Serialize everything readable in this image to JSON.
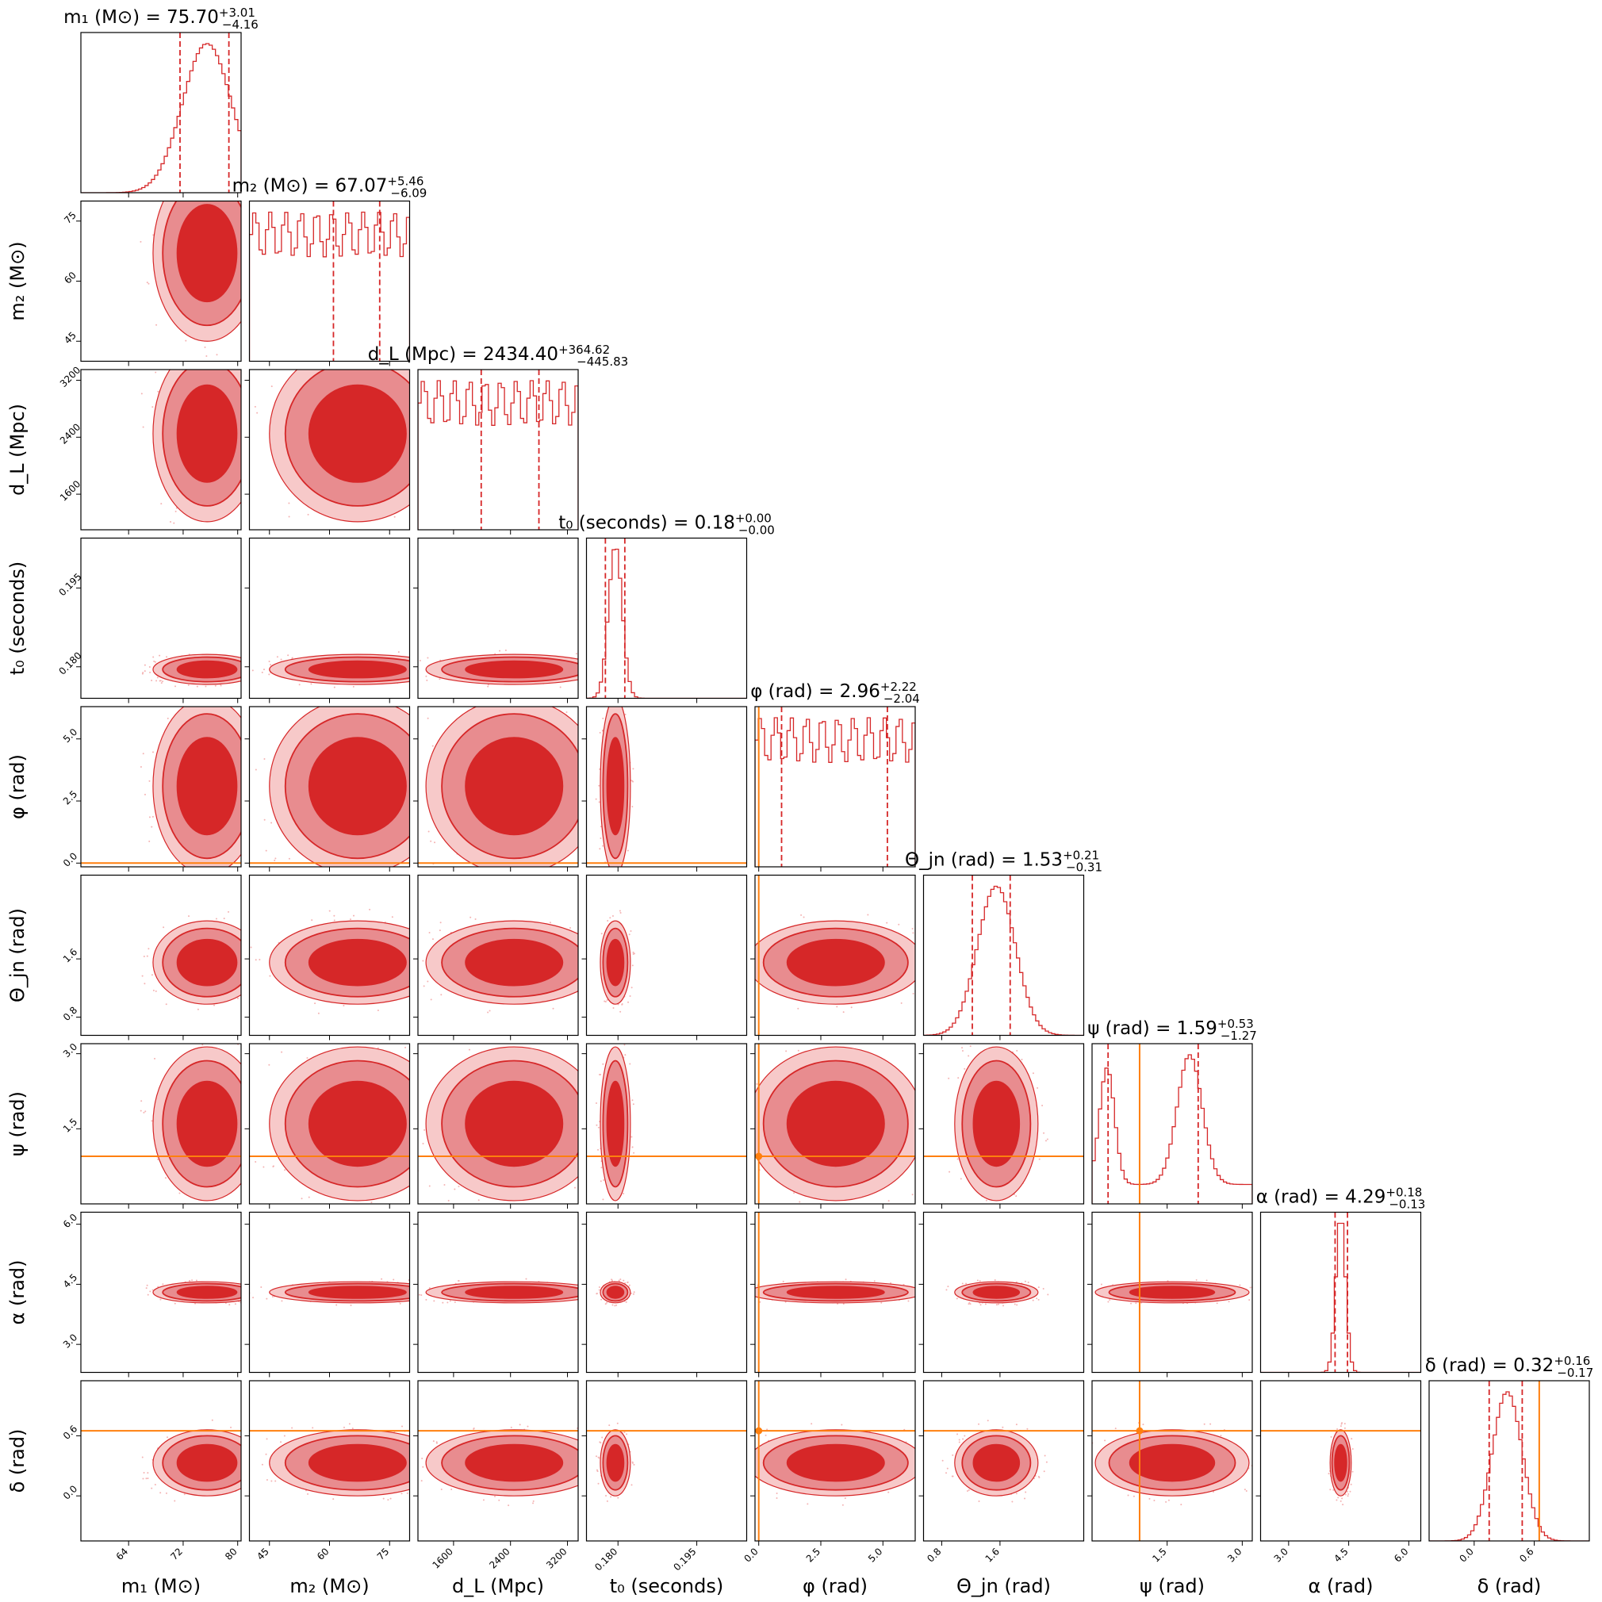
{
  "chart_data": {
    "type": "corner",
    "colors": {
      "posterior": "#d62728",
      "truth": "#ff7f0e"
    },
    "parameters": [
      {
        "id": "m1",
        "axis_label": "m₁ (M⊙)",
        "title": {
          "prefix": "m₁ (M⊙) = ",
          "median": "75.70",
          "plus": "+3.01",
          "minus": "−4.16"
        },
        "range": [
          57,
          80.5
        ],
        "ticks": [
          64,
          72,
          80
        ],
        "tick_labels": [
          "64",
          "72",
          "80"
        ],
        "median": 75.7,
        "lower": 71.54,
        "upper": 78.71,
        "center": 75.5,
        "sd": 3.6,
        "truth": null
      },
      {
        "id": "m2",
        "axis_label": "m₂ (M⊙)",
        "title": {
          "prefix": "m₂ (M⊙) = ",
          "median": "67.07",
          "plus": "+5.46",
          "minus": "−6.09"
        },
        "range": [
          40,
          80
        ],
        "ticks": [
          45,
          60,
          75
        ],
        "tick_labels": [
          "45",
          "60",
          "75"
        ],
        "median": 67.07,
        "lower": 60.98,
        "upper": 72.53,
        "center": 67.0,
        "sd": 5.7,
        "truth": null
      },
      {
        "id": "dL",
        "axis_label": "d_L (Mpc)",
        "title": {
          "prefix": "d_L (Mpc) = ",
          "median": "2434.40",
          "plus": "+364.62",
          "minus": "−445.83"
        },
        "range": [
          1100,
          3350
        ],
        "ticks": [
          1600,
          2400,
          3200
        ],
        "tick_labels": [
          "1600",
          "2400",
          "3200"
        ],
        "median": 2434.4,
        "lower": 1988.57,
        "upper": 2799.02,
        "center": 2450,
        "sd": 380,
        "truth": null
      },
      {
        "id": "t0",
        "axis_label": "t₀ (seconds)",
        "title": {
          "prefix": "t₀ (seconds) = ",
          "median": "0.18",
          "plus": "+0.00",
          "minus": "−0.00"
        },
        "range": [
          0.174,
          0.2045
        ],
        "ticks": [
          0.18,
          0.195
        ],
        "tick_labels": [
          "0.180",
          "0.195"
        ],
        "median": 0.1795,
        "lower": 0.1776,
        "upper": 0.1813,
        "center": 0.1795,
        "sd": 0.0013,
        "truth": null
      },
      {
        "id": "phi",
        "axis_label": "φ (rad)",
        "title": {
          "prefix": "φ (rad) = ",
          "median": "2.96",
          "plus": "+2.22",
          "minus": "−2.04"
        },
        "range": [
          -0.15,
          6.3
        ],
        "ticks": [
          0,
          2.5,
          5.0
        ],
        "tick_labels": [
          "0.0",
          "2.5",
          "5.0"
        ],
        "median": 2.96,
        "lower": 0.92,
        "upper": 5.18,
        "center": 3.1,
        "sd": 9,
        "truth": 0.0
      },
      {
        "id": "theta",
        "axis_label": "Θ_jn (rad)",
        "title": {
          "prefix": "Θ_jn (rad) = ",
          "median": "1.53",
          "plus": "+0.21",
          "minus": "−0.31"
        },
        "range": [
          0.55,
          2.75
        ],
        "ticks": [
          0.8,
          1.6
        ],
        "tick_labels": [
          "0.8",
          "1.6"
        ],
        "median": 1.53,
        "lower": 1.22,
        "upper": 1.74,
        "center": 1.55,
        "sd": 0.26,
        "truth": null
      },
      {
        "id": "psi",
        "axis_label": "ψ (rad)",
        "title": {
          "prefix": "ψ (rad) = ",
          "median": "1.59",
          "plus": "+0.53",
          "minus": "−1.27"
        },
        "range": [
          0,
          3.2
        ],
        "ticks": [
          1.5,
          3.0
        ],
        "tick_labels": [
          "1.5",
          "3.0"
        ],
        "median": 1.59,
        "lower": 0.32,
        "upper": 2.12,
        "center": 1.6,
        "sd": 0.9,
        "truth": 0.95
      },
      {
        "id": "alpha",
        "axis_label": "α (rad)",
        "title": {
          "prefix": "α (rad) = ",
          "median": "4.29",
          "plus": "+0.18",
          "minus": "−0.13"
        },
        "range": [
          2.3,
          6.3
        ],
        "ticks": [
          3.0,
          4.5,
          6.0
        ],
        "tick_labels": [
          "3.0",
          "4.5",
          "6.0"
        ],
        "median": 4.29,
        "lower": 4.16,
        "upper": 4.47,
        "center": 4.3,
        "sd": 0.12,
        "truth": null
      },
      {
        "id": "delta",
        "axis_label": "δ (rad)",
        "title": {
          "prefix": "δ (rad) = ",
          "median": "0.32",
          "plus": "+0.16",
          "minus": "−0.17"
        },
        "range": [
          -0.45,
          1.15
        ],
        "ticks": [
          0.0,
          0.6
        ],
        "tick_labels": [
          "0.0",
          "0.6"
        ],
        "median": 0.32,
        "lower": 0.15,
        "upper": 0.48,
        "center": 0.33,
        "sd": 0.15,
        "truth": 0.65
      }
    ]
  }
}
